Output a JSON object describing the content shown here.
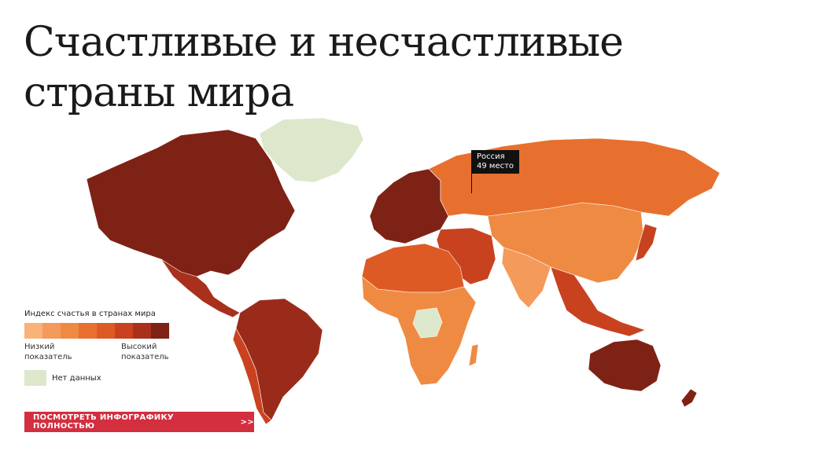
{
  "title": "Счастливые и несчастливые страны мира",
  "legend": {
    "title": "Индекс счастья в странах мира",
    "scale_colors": [
      "#f8b27a",
      "#f49a5a",
      "#ef8a42",
      "#e8702e",
      "#de5a25",
      "#c9421f",
      "#a8301d",
      "#7e2215"
    ],
    "low_label": "Низкий показатель",
    "high_label": "Высокий показатель",
    "no_data_label": "Нет данных",
    "no_data_color": "#dde7cc"
  },
  "callout": {
    "country": "Россия",
    "rank": "49 место"
  },
  "cta": {
    "label": "ПОСМОТРЕТЬ ИНФОГРАФИКУ ПОЛНОСТЬЮ",
    "arrows": ">>",
    "color": "#d32f3f"
  },
  "colors": {
    "north_america": "#7e2215",
    "greenland": "#dde7cc",
    "central_america": "#a8301d",
    "south_america": "#9a2b1b",
    "south_america_west": "#c9421f",
    "europe": "#7e2215",
    "russia": "#e8702e",
    "asia": "#ef8a42",
    "middle_east": "#c9421f",
    "africa": "#ef8a42",
    "africa_north": "#de5a25",
    "africa_nodata": "#dde7cc",
    "south_asia": "#f49a5a",
    "southeast_asia": "#c9421f",
    "australia": "#7e2215",
    "japan": "#c9421f"
  }
}
